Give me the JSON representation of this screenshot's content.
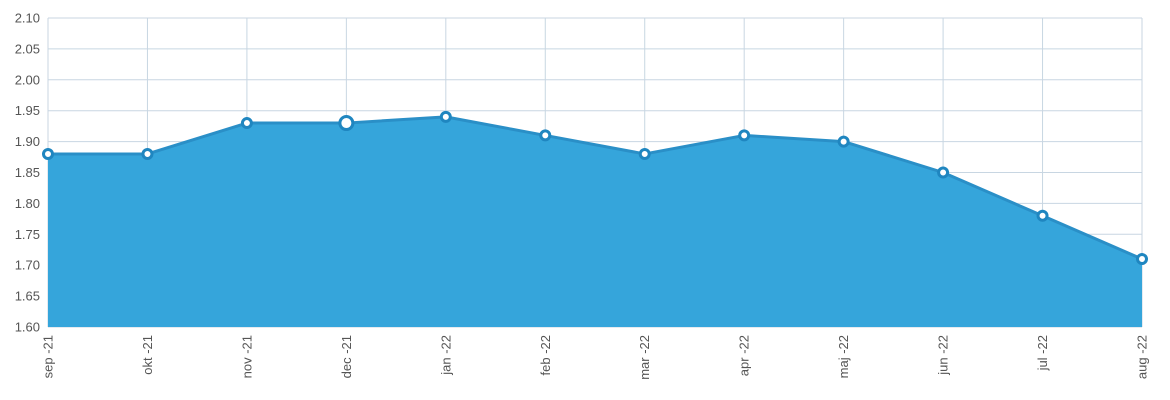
{
  "chart_data": {
    "type": "area",
    "categories": [
      "sep -21",
      "okt -21",
      "nov -21",
      "dec -21",
      "jan -22",
      "feb -22",
      "mar -22",
      "apr -22",
      "maj -22",
      "jun -22",
      "jul -22",
      "aug -22"
    ],
    "series": [
      {
        "values": [
          1.88,
          1.88,
          1.93,
          1.93,
          1.94,
          1.91,
          1.88,
          1.91,
          1.9,
          1.85,
          1.78,
          1.71
        ]
      }
    ],
    "ylim": [
      1.6,
      2.1
    ],
    "yticks": [
      "1.60",
      "1.65",
      "1.70",
      "1.75",
      "1.80",
      "1.85",
      "1.90",
      "1.95",
      "2.00",
      "2.05",
      "2.10"
    ],
    "grid": true,
    "highlighted_category": "dec -21",
    "colors": {
      "fill": "#35a5db",
      "line": "#2a8fc7",
      "grid": "#c8d6e2",
      "marker_stroke": "#1f86c0"
    }
  }
}
